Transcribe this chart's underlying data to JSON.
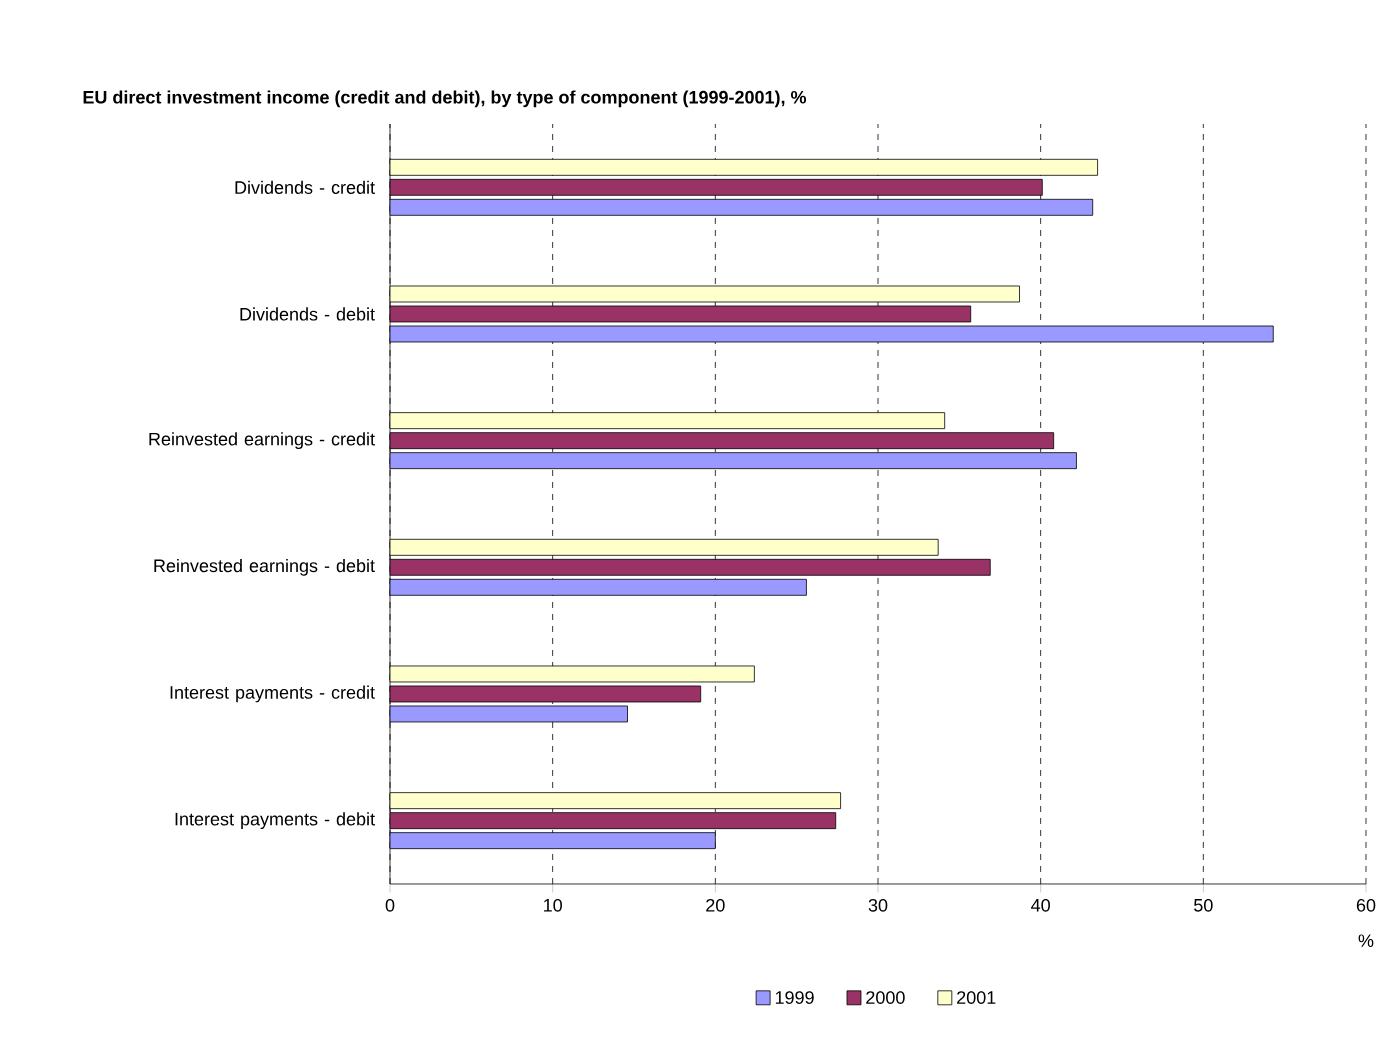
{
  "chart_data": {
    "type": "bar",
    "orientation": "horizontal",
    "title": "EU direct investment income (credit and debit), by type of component (1999-2001), %",
    "xlabel": "%",
    "categories": [
      "Dividends - credit",
      "Dividends - debit",
      "Reinvested earnings - credit",
      "Reinvested earnings - debit",
      "Interest payments - credit",
      "Interest payments - debit"
    ],
    "series": [
      {
        "name": "1999",
        "color": "#9999ff",
        "values": [
          43.2,
          54.3,
          42.2,
          25.6,
          14.6,
          20.0
        ]
      },
      {
        "name": "2000",
        "color": "#993366",
        "values": [
          40.1,
          35.7,
          40.8,
          36.9,
          19.1,
          27.4
        ]
      },
      {
        "name": "2001",
        "color": "#ffffcc",
        "values": [
          43.5,
          38.7,
          34.1,
          33.7,
          22.4,
          27.7
        ]
      }
    ],
    "xlim": [
      0,
      60
    ],
    "xticks": [
      0,
      10,
      20,
      30,
      40,
      50,
      60
    ],
    "grid": "x",
    "legend": "bottom"
  }
}
